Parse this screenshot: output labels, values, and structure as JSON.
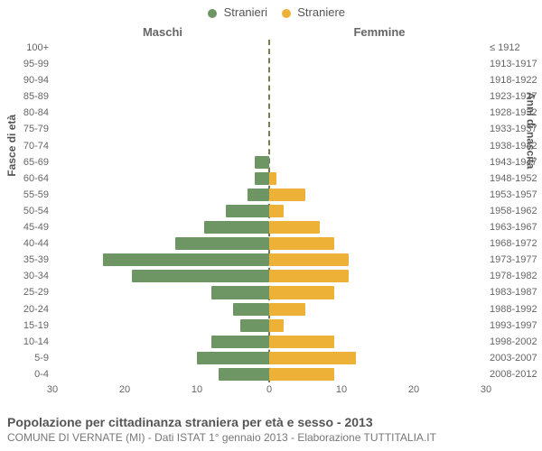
{
  "chart": {
    "type": "population-pyramid",
    "legend": {
      "male": "Stranieri",
      "female": "Straniere"
    },
    "column_headers": {
      "male": "Maschi",
      "female": "Femmine"
    },
    "colors": {
      "male": "#6e9564",
      "female": "#edb137",
      "center_line": "#7a7a55",
      "text": "#555555",
      "background": "#ffffff"
    },
    "axes": {
      "left_title": "Fasce di età",
      "right_title": "Anni di nascita",
      "x_label_fontsize": 11,
      "y_label_fontsize": 11,
      "title_fontsize": 12
    },
    "x": {
      "max": 30,
      "ticks_male": [
        30,
        20,
        10,
        0
      ],
      "ticks_female": [
        0,
        10,
        20,
        30
      ]
    },
    "rows": [
      {
        "age": "100+",
        "years": "≤ 1912",
        "m": 0,
        "f": 0
      },
      {
        "age": "95-99",
        "years": "1913-1917",
        "m": 0,
        "f": 0
      },
      {
        "age": "90-94",
        "years": "1918-1922",
        "m": 0,
        "f": 0
      },
      {
        "age": "85-89",
        "years": "1923-1927",
        "m": 0,
        "f": 0
      },
      {
        "age": "80-84",
        "years": "1928-1932",
        "m": 0,
        "f": 0
      },
      {
        "age": "75-79",
        "years": "1933-1937",
        "m": 0,
        "f": 0
      },
      {
        "age": "70-74",
        "years": "1938-1942",
        "m": 0,
        "f": 0
      },
      {
        "age": "65-69",
        "years": "1943-1947",
        "m": 2,
        "f": 0
      },
      {
        "age": "60-64",
        "years": "1948-1952",
        "m": 2,
        "f": 1
      },
      {
        "age": "55-59",
        "years": "1953-1957",
        "m": 3,
        "f": 5
      },
      {
        "age": "50-54",
        "years": "1958-1962",
        "m": 6,
        "f": 2
      },
      {
        "age": "45-49",
        "years": "1963-1967",
        "m": 9,
        "f": 7
      },
      {
        "age": "40-44",
        "years": "1968-1972",
        "m": 13,
        "f": 9
      },
      {
        "age": "35-39",
        "years": "1973-1977",
        "m": 23,
        "f": 11
      },
      {
        "age": "30-34",
        "years": "1978-1982",
        "m": 19,
        "f": 11
      },
      {
        "age": "25-29",
        "years": "1983-1987",
        "m": 8,
        "f": 9
      },
      {
        "age": "20-24",
        "years": "1988-1992",
        "m": 5,
        "f": 5
      },
      {
        "age": "15-19",
        "years": "1993-1997",
        "m": 4,
        "f": 2
      },
      {
        "age": "10-14",
        "years": "1998-2002",
        "m": 8,
        "f": 9
      },
      {
        "age": "5-9",
        "years": "2003-2007",
        "m": 10,
        "f": 12
      },
      {
        "age": "0-4",
        "years": "2008-2012",
        "m": 7,
        "f": 9
      }
    ],
    "footer": {
      "title": "Popolazione per cittadinanza straniera per età e sesso - 2013",
      "subtitle": "COMUNE DI VERNATE (MI) - Dati ISTAT 1° gennaio 2013 - Elaborazione TUTTITALIA.IT"
    }
  }
}
